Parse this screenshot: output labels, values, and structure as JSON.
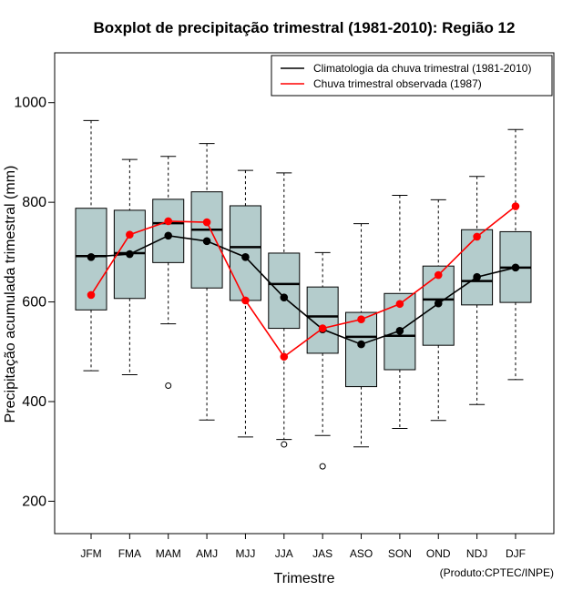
{
  "chart_data": {
    "type": "boxplot",
    "title": "Boxplot de precipitação trimestral (1981-2010): Região 12",
    "xlabel": "Trimestre",
    "ylabel": "Precipitação acumulada trimestral (mm)",
    "ylim": [
      135,
      1100
    ],
    "yticks": [
      200,
      400,
      600,
      800,
      1000
    ],
    "credit": "(Produto:CPTEC/INPE)",
    "box_color": "#b4cccc",
    "legend_position": "top-right",
    "categories": [
      "JFM",
      "FMA",
      "MAM",
      "AMJ",
      "MJJ",
      "JJA",
      "JAS",
      "ASO",
      "SON",
      "OND",
      "NDJ",
      "DJF"
    ],
    "boxes": [
      {
        "whisker_low": 462,
        "q1": 584,
        "median": 692,
        "q3": 788,
        "whisker_high": 964,
        "outliers": []
      },
      {
        "whisker_low": 454,
        "q1": 607,
        "median": 698,
        "q3": 784,
        "whisker_high": 886,
        "outliers": []
      },
      {
        "whisker_low": 556,
        "q1": 679,
        "median": 758,
        "q3": 806,
        "whisker_high": 892,
        "outliers": [
          432
        ]
      },
      {
        "whisker_low": 363,
        "q1": 628,
        "median": 745,
        "q3": 821,
        "whisker_high": 918,
        "outliers": []
      },
      {
        "whisker_low": 329,
        "q1": 603,
        "median": 710,
        "q3": 793,
        "whisker_high": 864,
        "outliers": []
      },
      {
        "whisker_low": 324,
        "q1": 547,
        "median": 636,
        "q3": 698,
        "whisker_high": 859,
        "outliers": [
          314
        ]
      },
      {
        "whisker_low": 332,
        "q1": 497,
        "median": 571,
        "q3": 630,
        "whisker_high": 699,
        "outliers": [
          270
        ]
      },
      {
        "whisker_low": 309,
        "q1": 430,
        "median": 530,
        "q3": 579,
        "whisker_high": 757,
        "outliers": []
      },
      {
        "whisker_low": 346,
        "q1": 464,
        "median": 532,
        "q3": 617,
        "whisker_high": 814,
        "outliers": []
      },
      {
        "whisker_low": 362,
        "q1": 513,
        "median": 605,
        "q3": 672,
        "whisker_high": 805,
        "outliers": []
      },
      {
        "whisker_low": 394,
        "q1": 594,
        "median": 642,
        "q3": 745,
        "whisker_high": 852,
        "outliers": []
      },
      {
        "whisker_low": 444,
        "q1": 599,
        "median": 669,
        "q3": 741,
        "whisker_high": 946,
        "outliers": []
      }
    ],
    "series": [
      {
        "name": "Climatologia da chuva trimestral (1981-2010)",
        "color": "#000000",
        "values": [
          690,
          696,
          733,
          722,
          690,
          609,
          545,
          515,
          542,
          597,
          650,
          669
        ]
      },
      {
        "name": "Chuva trimestral observada (1987)",
        "color": "#ff0000",
        "values": [
          614,
          735,
          762,
          760,
          603,
          490,
          547,
          565,
          596,
          654,
          731,
          792
        ]
      }
    ]
  }
}
